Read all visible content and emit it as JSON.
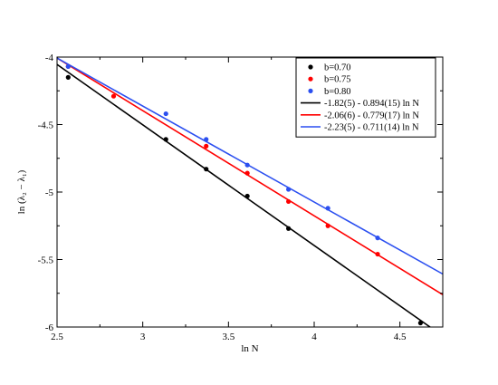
{
  "chart_data": {
    "type": "scatter",
    "title": "",
    "xlabel": "ln N",
    "ylabel": "ln (λ₂ − λ₁)",
    "xlim": [
      2.5,
      4.75
    ],
    "ylim": [
      -6,
      -4
    ],
    "xticks": [
      2.5,
      3,
      3.5,
      4,
      4.5
    ],
    "yticks": [
      -4,
      -4.5,
      -5,
      -5.5,
      -6
    ],
    "xtick_labels": [
      "2.5",
      "3",
      "3.5",
      "4",
      "4.5"
    ],
    "ytick_labels": [
      "-4",
      "-4.5",
      "-5",
      "-5.5",
      "-6"
    ],
    "grid": false,
    "legend_position": "top-right",
    "series": [
      {
        "name": "b=0.70",
        "color": "#000000",
        "points": [
          [
            2.565,
            -4.15
          ],
          [
            3.135,
            -4.61
          ],
          [
            3.37,
            -4.83
          ],
          [
            3.61,
            -5.03
          ],
          [
            3.85,
            -5.27
          ],
          [
            4.62,
            -5.97
          ]
        ]
      },
      {
        "name": "b=0.75",
        "color": "#ff0000",
        "points": [
          [
            2.565,
            -4.07
          ],
          [
            2.83,
            -4.29
          ],
          [
            3.37,
            -4.66
          ],
          [
            3.61,
            -4.86
          ],
          [
            3.85,
            -5.07
          ],
          [
            4.08,
            -5.25
          ],
          [
            4.37,
            -5.46
          ]
        ]
      },
      {
        "name": "b=0.80",
        "color": "#2b4ff0",
        "points": [
          [
            2.565,
            -4.07
          ],
          [
            3.135,
            -4.42
          ],
          [
            3.37,
            -4.61
          ],
          [
            3.61,
            -4.8
          ],
          [
            3.85,
            -4.98
          ],
          [
            4.08,
            -5.12
          ],
          [
            4.37,
            -5.34
          ]
        ]
      }
    ],
    "fits": [
      {
        "name": "-1.82(5) - 0.894(15) ln N",
        "color": "#000000",
        "intercept": -1.82,
        "slope": -0.894,
        "x_range": [
          2.5,
          4.75
        ]
      },
      {
        "name": "-2.06(6) - 0.779(17) ln N",
        "color": "#ff0000",
        "intercept": -2.06,
        "slope": -0.779,
        "x_range": [
          2.5,
          4.75
        ]
      },
      {
        "name": "-2.23(5) - 0.711(14) ln N",
        "color": "#2b4ff0",
        "intercept": -2.23,
        "slope": -0.711,
        "x_range": [
          2.5,
          4.75
        ]
      }
    ]
  }
}
